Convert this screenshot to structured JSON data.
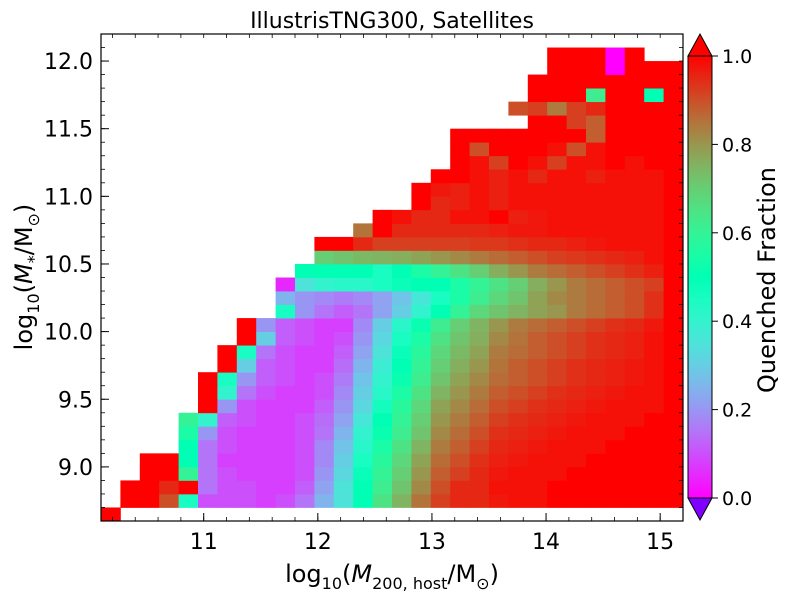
{
  "chart_data": {
    "type": "heatmap",
    "title": "IllustrisTNG300, Satellites",
    "xlabel_prefix": "log",
    "xlabel_sub": "10",
    "xlabel_body": "(M",
    "xlabel_body_sub": "200, host",
    "xlabel_tail": "/M",
    "xlabel_sun": "⊙",
    "xlabel_close": ")",
    "ylabel_prefix": "log",
    "ylabel_sub": "10",
    "ylabel_body": "(M",
    "ylabel_body_sub": "*",
    "ylabel_tail": "/M",
    "ylabel_sun": "⊙",
    "ylabel_close": ")",
    "colorbar_label": "Quenched Fraction",
    "colormap": "rainbow",
    "colorbar_extend": "both",
    "xlim": [
      10.1,
      15.2
    ],
    "ylim": [
      8.6,
      12.2
    ],
    "x_ticks": [
      "11",
      "12",
      "13",
      "14",
      "15"
    ],
    "y_ticks": [
      "9.0",
      "9.5",
      "10.0",
      "10.5",
      "11.0",
      "11.5",
      "12.0"
    ],
    "cbar_ticks": [
      "0.0",
      "0.2",
      "0.4",
      "0.6",
      "0.8",
      "1.0"
    ],
    "clim": [
      0,
      1
    ],
    "bins_x": {
      "start": 10.1,
      "width": 0.17,
      "count": 30
    },
    "bins_y": {
      "start": 8.6,
      "width": 0.1,
      "count": 36
    },
    "notes_on_values": "values are quenched fraction per (host mass, stellar mass) bin, read from colour",
    "rows": [
      [
        1.0,
        0.0,
        0.0,
        0.0,
        0.0,
        0.0,
        0.0,
        0.0,
        0.0,
        0.0,
        0.0,
        0.0,
        0.0,
        0.0,
        0.0,
        0.0,
        0.0,
        0.0,
        0.0,
        0.0,
        0.0,
        0.0,
        0.0,
        0.0,
        0.0,
        0.0,
        0.0,
        0.0,
        0.0,
        0.0
      ],
      [
        0.0,
        1.0,
        1.0,
        0.9,
        0.45,
        0.1,
        0.1,
        0.1,
        0.08,
        0.1,
        0.15,
        0.25,
        0.35,
        0.5,
        0.65,
        0.75,
        0.85,
        0.92,
        0.95,
        0.95,
        0.97,
        0.98,
        0.98,
        1.0,
        1.0,
        1.0,
        1.0,
        1.0,
        1.0,
        1.0
      ],
      [
        0.0,
        1.0,
        1.0,
        0.95,
        1.0,
        0.15,
        0.1,
        0.1,
        0.08,
        0.08,
        0.12,
        0.22,
        0.35,
        0.5,
        0.62,
        0.72,
        0.82,
        0.9,
        0.95,
        0.95,
        0.98,
        0.98,
        0.98,
        1.0,
        1.0,
        1.0,
        1.0,
        1.0,
        1.0,
        1.0
      ],
      [
        0.0,
        0.0,
        1.0,
        1.0,
        0.6,
        0.15,
        0.1,
        0.08,
        0.08,
        0.08,
        0.1,
        0.2,
        0.32,
        0.48,
        0.6,
        0.7,
        0.8,
        0.88,
        0.92,
        0.95,
        0.97,
        0.98,
        0.98,
        0.98,
        1.0,
        1.0,
        1.0,
        1.0,
        1.0,
        1.0
      ],
      [
        0.0,
        0.0,
        1.0,
        1.0,
        0.5,
        0.15,
        0.08,
        0.08,
        0.08,
        0.08,
        0.1,
        0.18,
        0.3,
        0.45,
        0.58,
        0.68,
        0.78,
        0.86,
        0.9,
        0.94,
        0.96,
        0.97,
        0.98,
        0.98,
        0.98,
        1.0,
        1.0,
        1.0,
        1.0,
        1.0
      ],
      [
        0.0,
        0.0,
        0.0,
        0.0,
        0.5,
        0.15,
        0.1,
        0.08,
        0.08,
        0.08,
        0.1,
        0.18,
        0.28,
        0.42,
        0.55,
        0.65,
        0.75,
        0.84,
        0.88,
        0.92,
        0.95,
        0.96,
        0.97,
        0.98,
        0.98,
        0.98,
        1.0,
        1.0,
        1.0,
        1.0
      ],
      [
        0.0,
        0.0,
        0.0,
        0.0,
        0.55,
        0.2,
        0.1,
        0.08,
        0.08,
        0.08,
        0.1,
        0.15,
        0.25,
        0.4,
        0.52,
        0.62,
        0.72,
        0.82,
        0.86,
        0.9,
        0.94,
        0.95,
        0.96,
        0.97,
        0.98,
        0.98,
        0.98,
        1.0,
        1.0,
        1.0
      ],
      [
        0.0,
        0.0,
        0.0,
        0.0,
        0.6,
        0.4,
        0.12,
        0.1,
        0.08,
        0.08,
        0.1,
        0.14,
        0.22,
        0.36,
        0.5,
        0.6,
        0.7,
        0.8,
        0.84,
        0.88,
        0.92,
        0.94,
        0.95,
        0.96,
        0.97,
        0.98,
        0.98,
        0.98,
        1.0,
        1.0
      ],
      [
        0.0,
        0.0,
        0.0,
        0.0,
        0.0,
        1.0,
        0.2,
        0.1,
        0.08,
        0.08,
        0.08,
        0.12,
        0.2,
        0.32,
        0.46,
        0.58,
        0.68,
        0.78,
        0.82,
        0.86,
        0.9,
        0.92,
        0.94,
        0.95,
        0.96,
        0.97,
        0.98,
        0.98,
        0.98,
        1.0
      ],
      [
        0.0,
        0.0,
        0.0,
        0.0,
        0.0,
        1.0,
        0.4,
        0.15,
        0.1,
        0.08,
        0.08,
        0.1,
        0.18,
        0.3,
        0.42,
        0.55,
        0.65,
        0.75,
        0.8,
        0.84,
        0.88,
        0.9,
        0.92,
        0.94,
        0.95,
        0.96,
        0.97,
        0.98,
        0.98,
        1.0
      ],
      [
        0.0,
        0.0,
        0.0,
        0.0,
        0.0,
        1.0,
        0.45,
        0.2,
        0.12,
        0.1,
        0.08,
        0.1,
        0.16,
        0.28,
        0.4,
        0.52,
        0.62,
        0.72,
        0.78,
        0.82,
        0.86,
        0.88,
        0.9,
        0.92,
        0.94,
        0.95,
        0.96,
        0.97,
        0.98,
        1.0
      ],
      [
        0.0,
        0.0,
        0.0,
        0.0,
        0.0,
        0.0,
        1.0,
        0.3,
        0.12,
        0.1,
        0.08,
        0.08,
        0.14,
        0.25,
        0.38,
        0.5,
        0.6,
        0.7,
        0.76,
        0.8,
        0.85,
        0.88,
        0.9,
        0.92,
        0.94,
        0.95,
        0.96,
        0.97,
        0.98,
        1.0
      ],
      [
        0.0,
        0.0,
        0.0,
        0.0,
        0.0,
        0.0,
        1.0,
        0.45,
        0.15,
        0.1,
        0.08,
        0.08,
        0.12,
        0.22,
        0.35,
        0.48,
        0.58,
        0.68,
        0.74,
        0.78,
        0.84,
        0.86,
        0.88,
        0.9,
        0.92,
        0.94,
        0.95,
        0.96,
        0.98,
        1.0
      ],
      [
        0.0,
        0.0,
        0.0,
        0.0,
        0.0,
        0.0,
        0.0,
        1.0,
        0.3,
        0.12,
        0.1,
        0.08,
        0.1,
        0.2,
        0.32,
        0.45,
        0.55,
        0.65,
        0.72,
        0.76,
        0.82,
        0.85,
        0.88,
        0.9,
        0.92,
        0.94,
        0.95,
        0.96,
        0.98,
        1.0
      ],
      [
        0.0,
        0.0,
        0.0,
        0.0,
        0.0,
        0.0,
        0.0,
        1.0,
        0.2,
        0.12,
        0.1,
        0.08,
        0.08,
        0.18,
        0.3,
        0.42,
        0.52,
        0.62,
        0.7,
        0.75,
        0.8,
        0.84,
        0.86,
        0.88,
        0.9,
        0.92,
        0.94,
        0.95,
        0.97,
        1.0
      ],
      [
        0.0,
        0.0,
        0.0,
        0.0,
        0.0,
        0.0,
        0.0,
        0.0,
        0.0,
        0.45,
        0.2,
        0.15,
        0.12,
        0.15,
        0.22,
        0.3,
        0.4,
        0.5,
        0.6,
        0.68,
        0.72,
        0.75,
        0.78,
        0.8,
        0.84,
        0.86,
        0.88,
        0.9,
        0.94,
        1.0
      ],
      [
        0.0,
        0.0,
        0.0,
        0.0,
        0.0,
        0.0,
        0.0,
        0.0,
        0.0,
        0.25,
        0.2,
        0.18,
        0.16,
        0.18,
        0.22,
        0.28,
        0.36,
        0.45,
        0.55,
        0.62,
        0.68,
        0.72,
        0.78,
        0.82,
        0.84,
        0.86,
        0.88,
        0.9,
        0.94,
        1.0
      ],
      [
        0.0,
        0.0,
        0.0,
        0.0,
        0.0,
        0.0,
        0.0,
        0.0,
        0.0,
        0.05,
        0.35,
        0.4,
        0.42,
        0.42,
        0.45,
        0.48,
        0.5,
        0.5,
        0.55,
        0.6,
        0.65,
        0.7,
        0.76,
        0.8,
        0.84,
        0.86,
        0.88,
        0.9,
        0.92,
        1.0
      ],
      [
        0.0,
        0.0,
        0.0,
        0.0,
        0.0,
        0.0,
        0.0,
        0.0,
        0.0,
        0.0,
        0.5,
        0.5,
        0.5,
        0.5,
        0.45,
        0.5,
        0.55,
        0.6,
        0.65,
        0.7,
        0.76,
        0.8,
        0.84,
        0.86,
        0.88,
        0.9,
        0.92,
        0.94,
        0.96,
        1.0
      ],
      [
        0.0,
        0.0,
        0.0,
        0.0,
        0.0,
        0.0,
        0.0,
        0.0,
        0.0,
        0.0,
        0.0,
        0.7,
        0.72,
        0.74,
        0.75,
        0.76,
        0.78,
        0.8,
        0.82,
        0.84,
        0.86,
        0.88,
        0.9,
        0.92,
        0.93,
        0.94,
        0.95,
        0.96,
        0.98,
        1.0
      ],
      [
        0.0,
        0.0,
        0.0,
        0.0,
        0.0,
        0.0,
        0.0,
        0.0,
        0.0,
        0.0,
        0.0,
        1.0,
        1.0,
        0.95,
        0.92,
        0.92,
        0.92,
        0.92,
        0.92,
        0.93,
        0.93,
        0.94,
        0.95,
        0.95,
        0.96,
        0.97,
        0.98,
        0.98,
        0.98,
        1.0
      ],
      [
        0.0,
        0.0,
        0.0,
        0.0,
        0.0,
        0.0,
        0.0,
        0.0,
        0.0,
        0.0,
        0.0,
        0.0,
        0.0,
        0.85,
        1.0,
        0.95,
        0.95,
        0.95,
        0.95,
        0.95,
        0.96,
        0.97,
        0.97,
        0.98,
        0.98,
        0.98,
        0.98,
        0.98,
        0.98,
        1.0
      ],
      [
        0.0,
        0.0,
        0.0,
        0.0,
        0.0,
        0.0,
        0.0,
        0.0,
        0.0,
        0.0,
        0.0,
        0.0,
        0.0,
        0.0,
        1.0,
        0.98,
        0.95,
        0.95,
        0.98,
        0.98,
        1.0,
        0.96,
        0.97,
        0.98,
        0.98,
        0.98,
        0.98,
        0.98,
        0.98,
        1.0
      ],
      [
        0.0,
        0.0,
        0.0,
        0.0,
        0.0,
        0.0,
        0.0,
        0.0,
        0.0,
        0.0,
        0.0,
        0.0,
        0.0,
        0.0,
        0.0,
        0.0,
        1.0,
        0.95,
        0.96,
        0.98,
        0.96,
        0.98,
        0.98,
        0.98,
        0.98,
        0.98,
        0.98,
        0.98,
        0.98,
        1.0
      ],
      [
        0.0,
        0.0,
        0.0,
        0.0,
        0.0,
        0.0,
        0.0,
        0.0,
        0.0,
        0.0,
        0.0,
        0.0,
        0.0,
        0.0,
        0.0,
        0.0,
        1.0,
        0.97,
        0.96,
        0.98,
        0.96,
        0.98,
        0.98,
        0.98,
        0.98,
        0.98,
        0.98,
        0.98,
        0.98,
        1.0
      ],
      [
        0.0,
        0.0,
        0.0,
        0.0,
        0.0,
        0.0,
        0.0,
        0.0,
        0.0,
        0.0,
        0.0,
        0.0,
        0.0,
        0.0,
        0.0,
        0.0,
        0.0,
        1.0,
        1.0,
        0.98,
        0.96,
        0.98,
        0.95,
        0.98,
        0.98,
        0.96,
        0.98,
        0.98,
        0.98,
        1.0
      ],
      [
        0.0,
        0.0,
        0.0,
        0.0,
        0.0,
        0.0,
        0.0,
        0.0,
        0.0,
        0.0,
        0.0,
        0.0,
        0.0,
        0.0,
        0.0,
        0.0,
        0.0,
        0.0,
        1.0,
        0.98,
        0.92,
        1.0,
        0.98,
        0.92,
        0.98,
        0.98,
        1.0,
        0.98,
        1.0,
        1.0
      ],
      [
        0.0,
        0.0,
        0.0,
        0.0,
        0.0,
        0.0,
        0.0,
        0.0,
        0.0,
        0.0,
        0.0,
        0.0,
        0.0,
        0.0,
        0.0,
        0.0,
        0.0,
        0.0,
        1.0,
        0.9,
        1.0,
        1.0,
        1.0,
        0.98,
        0.9,
        0.98,
        1.0,
        1.0,
        1.0,
        1.0
      ],
      [
        0.0,
        0.0,
        0.0,
        0.0,
        0.0,
        0.0,
        0.0,
        0.0,
        0.0,
        0.0,
        0.0,
        0.0,
        0.0,
        0.0,
        0.0,
        0.0,
        0.0,
        0.0,
        1.0,
        1.0,
        1.0,
        1.0,
        1.0,
        1.0,
        1.0,
        0.88,
        1.0,
        1.0,
        1.0,
        1.0
      ],
      [
        0.0,
        0.0,
        0.0,
        0.0,
        0.0,
        0.0,
        0.0,
        0.0,
        0.0,
        0.0,
        0.0,
        0.0,
        0.0,
        0.0,
        0.0,
        0.0,
        0.0,
        0.0,
        0.0,
        0.0,
        0.0,
        0.0,
        1.0,
        1.0,
        0.92,
        0.88,
        1.0,
        1.0,
        1.0,
        1.0
      ],
      [
        0.0,
        0.0,
        0.0,
        0.0,
        0.0,
        0.0,
        0.0,
        0.0,
        0.0,
        0.0,
        0.0,
        0.0,
        0.0,
        0.0,
        0.0,
        0.0,
        0.0,
        0.0,
        0.0,
        0.0,
        0.0,
        0.9,
        0.92,
        0.84,
        0.92,
        0.95,
        1.0,
        1.0,
        1.0,
        1.0
      ],
      [
        0.0,
        0.0,
        0.0,
        0.0,
        0.0,
        0.0,
        0.0,
        0.0,
        0.0,
        0.0,
        0.0,
        0.0,
        0.0,
        0.0,
        0.0,
        0.0,
        0.0,
        0.0,
        0.0,
        0.0,
        0.0,
        0.0,
        1.0,
        1.0,
        1.0,
        0.62,
        1.0,
        1.0,
        0.5,
        1.0
      ],
      [
        0.0,
        0.0,
        0.0,
        0.0,
        0.0,
        0.0,
        0.0,
        0.0,
        0.0,
        0.0,
        0.0,
        0.0,
        0.0,
        0.0,
        0.0,
        0.0,
        0.0,
        0.0,
        0.0,
        0.0,
        0.0,
        0.0,
        1.0,
        1.0,
        1.0,
        1.0,
        1.0,
        1.0,
        1.0,
        1.0
      ],
      [
        0.0,
        0.0,
        0.0,
        0.0,
        0.0,
        0.0,
        0.0,
        0.0,
        0.0,
        0.0,
        0.0,
        0.0,
        0.0,
        0.0,
        0.0,
        0.0,
        0.0,
        0.0,
        0.0,
        0.0,
        0.0,
        0.0,
        0.0,
        1.0,
        1.0,
        1.0,
        0.0,
        1.0,
        1.0,
        1.0
      ],
      [
        0.0,
        0.0,
        0.0,
        0.0,
        0.0,
        0.0,
        0.0,
        0.0,
        0.0,
        0.0,
        0.0,
        0.0,
        0.0,
        0.0,
        0.0,
        0.0,
        0.0,
        0.0,
        0.0,
        0.0,
        0.0,
        0.0,
        0.0,
        1.0,
        1.0,
        1.0,
        0.0,
        1.0,
        0.0,
        0.0
      ],
      [
        0.0,
        0.0,
        0.0,
        0.0,
        0.0,
        0.0,
        0.0,
        0.0,
        0.0,
        0.0,
        0.0,
        0.0,
        0.0,
        0.0,
        0.0,
        0.0,
        0.0,
        0.0,
        0.0,
        0.0,
        0.0,
        0.0,
        0.0,
        0.0,
        0.0,
        0.0,
        0.0,
        0.0,
        0.0,
        0.0
      ]
    ],
    "mask": "bins left of the populated wedge (lower-left diagonal) and above the upper envelope are empty (white)",
    "occupied_ranges": [
      [
        0,
        0
      ],
      [
        1,
        29
      ],
      [
        1,
        29
      ],
      [
        2,
        29
      ],
      [
        2,
        29
      ],
      [
        4,
        29
      ],
      [
        4,
        29
      ],
      [
        4,
        29
      ],
      [
        5,
        29
      ],
      [
        5,
        29
      ],
      [
        5,
        29
      ],
      [
        6,
        29
      ],
      [
        6,
        29
      ],
      [
        7,
        29
      ],
      [
        7,
        29
      ],
      [
        9,
        29
      ],
      [
        9,
        29
      ],
      [
        9,
        29
      ],
      [
        10,
        29
      ],
      [
        11,
        29
      ],
      [
        11,
        29
      ],
      [
        13,
        29
      ],
      [
        14,
        29
      ],
      [
        16,
        29
      ],
      [
        16,
        29
      ],
      [
        17,
        29
      ],
      [
        18,
        29
      ],
      [
        18,
        29
      ],
      [
        18,
        29
      ],
      [
        22,
        29
      ],
      [
        21,
        29
      ],
      [
        22,
        29
      ],
      [
        22,
        29
      ],
      [
        23,
        29
      ],
      [
        23,
        27
      ],
      [
        -1,
        -1
      ]
    ]
  }
}
